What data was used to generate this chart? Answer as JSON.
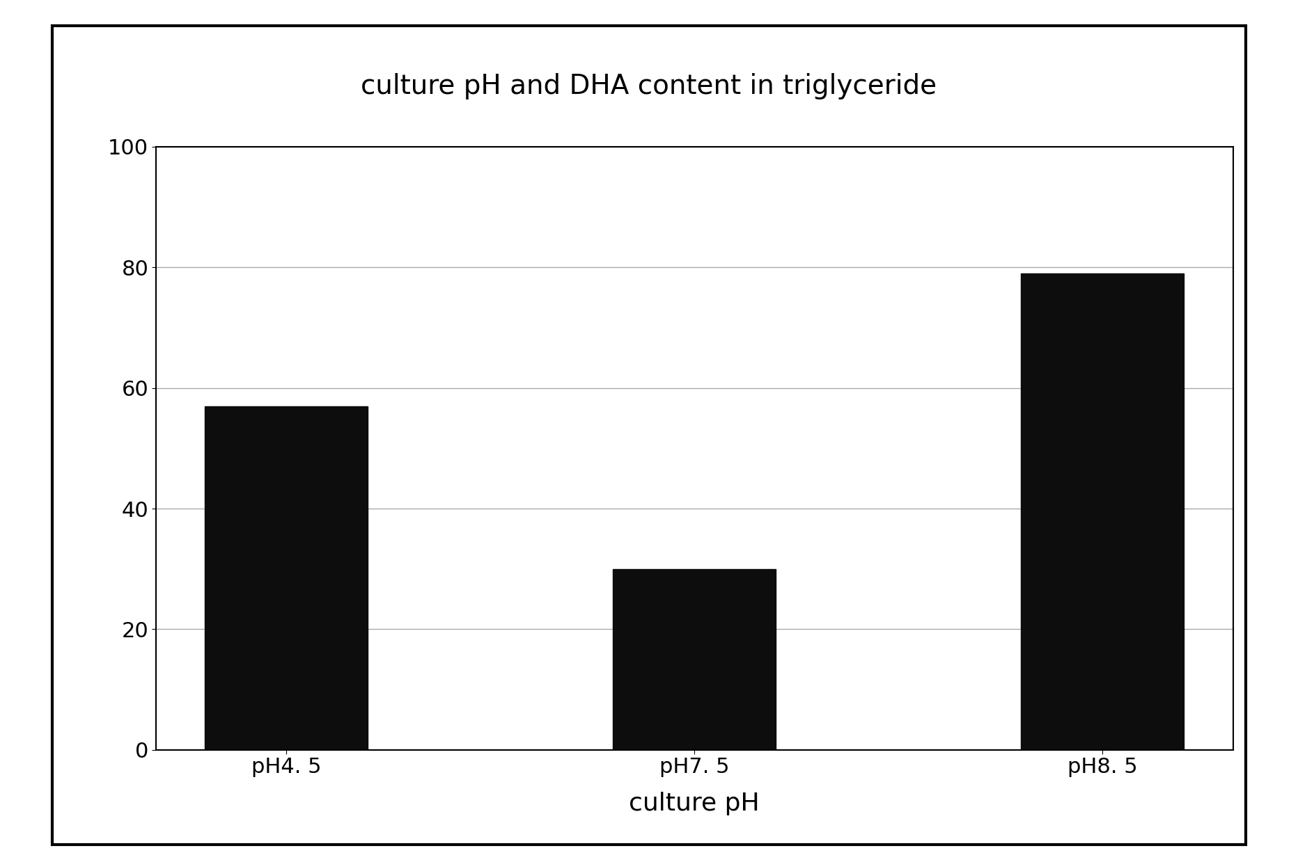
{
  "title": "culture pH and DHA content in triglyceride",
  "xlabel": "culture pH",
  "ylabel": "",
  "categories": [
    "pH4. 5",
    "pH7. 5",
    "pH8. 5"
  ],
  "values": [
    57,
    30,
    79
  ],
  "bar_color": "#0d0d0d",
  "ylim": [
    0,
    100
  ],
  "yticks": [
    0,
    20,
    40,
    60,
    80,
    100
  ],
  "background_color": "#ffffff",
  "plot_bg_color": "#ffffff",
  "title_fontsize": 28,
  "xlabel_fontsize": 26,
  "tick_fontsize": 22,
  "grid_color": "#aaaaaa",
  "border_color": "#000000",
  "bar_width": 0.4
}
